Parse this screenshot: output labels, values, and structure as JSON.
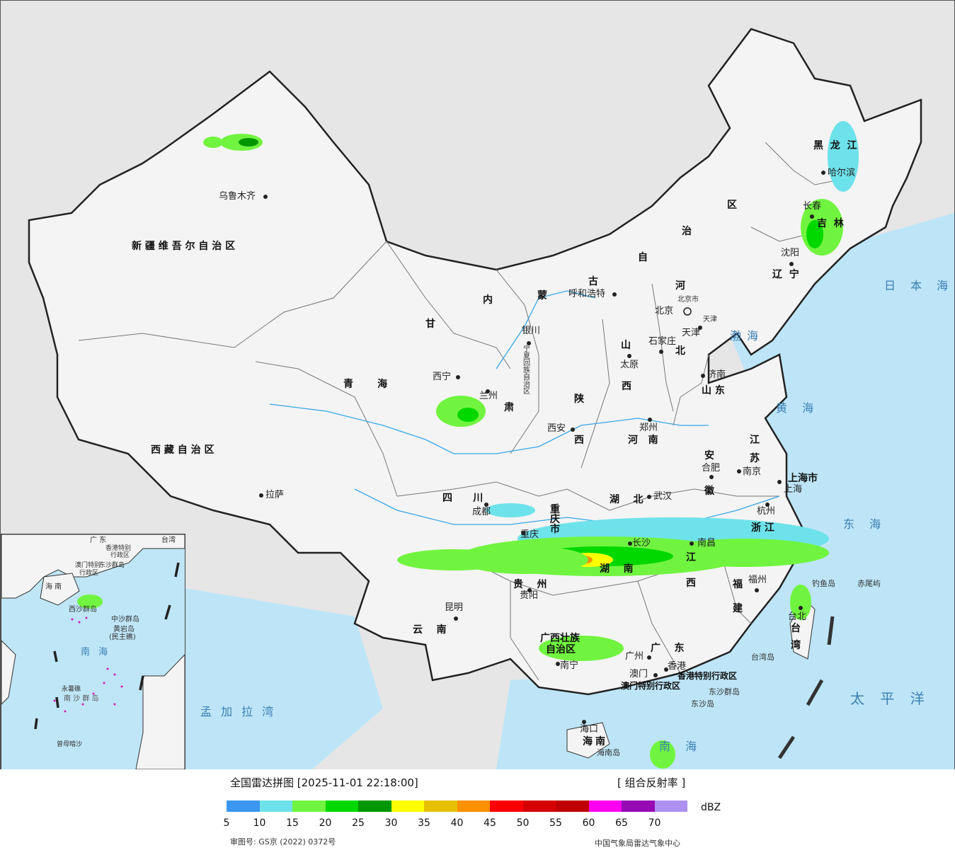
{
  "map": {
    "provinces": [
      {
        "id": "xinjiang",
        "text": "新 疆 维 吾 尔 自 治 区"
      },
      {
        "id": "xizang",
        "text": "西 藏 自 治 区"
      },
      {
        "id": "qinghai",
        "text": "青       海"
      },
      {
        "id": "gansu-1",
        "text": "甘"
      },
      {
        "id": "gansu-2",
        "text": "肃"
      },
      {
        "id": "neimenggu-1",
        "text": "内"
      },
      {
        "id": "neimenggu-2",
        "text": "蒙"
      },
      {
        "id": "neimenggu-3",
        "text": "古"
      },
      {
        "id": "neimenggu-4",
        "text": "自"
      },
      {
        "id": "neimenggu-5",
        "text": "治"
      },
      {
        "id": "neimenggu-6",
        "text": "区"
      },
      {
        "id": "heilongjiang",
        "text": "黑  龙  江"
      },
      {
        "id": "jilin",
        "text": "吉  林"
      },
      {
        "id": "liaoning",
        "text": "辽  宁"
      },
      {
        "id": "hebei-1",
        "text": "河"
      },
      {
        "id": "hebei-2",
        "text": "北"
      },
      {
        "id": "shanxi-1",
        "text": "山"
      },
      {
        "id": "shanxi-2",
        "text": "西"
      },
      {
        "id": "shaanxi-1",
        "text": "陕"
      },
      {
        "id": "shaanxi-2",
        "text": "西"
      },
      {
        "id": "shandong",
        "text": "山 东"
      },
      {
        "id": "henan",
        "text": "河   南"
      },
      {
        "id": "jiangsu-1",
        "text": "江"
      },
      {
        "id": "jiangsu-2",
        "text": "苏"
      },
      {
        "id": "anhui-1",
        "text": "安"
      },
      {
        "id": "anhui-2",
        "text": "徽"
      },
      {
        "id": "shanghai",
        "text": "上海市"
      },
      {
        "id": "sichuan",
        "text": "四      川"
      },
      {
        "id": "chongqing",
        "text": "重 庆 市"
      },
      {
        "id": "hubei",
        "text": "湖    北"
      },
      {
        "id": "zhejiang",
        "text": "浙 江"
      },
      {
        "id": "hunan",
        "text": "湖    南"
      },
      {
        "id": "jiangxi-1",
        "text": "江"
      },
      {
        "id": "jiangxi-2",
        "text": "西"
      },
      {
        "id": "fujian-1",
        "text": "福"
      },
      {
        "id": "fujian-2",
        "text": "建"
      },
      {
        "id": "guizhou",
        "text": "贵    州"
      },
      {
        "id": "yunnan",
        "text": "云    南"
      },
      {
        "id": "guangxi-1",
        "text": "广西壮族"
      },
      {
        "id": "guangxi-2",
        "text": "自治区"
      },
      {
        "id": "guangdong",
        "text": "广    东"
      },
      {
        "id": "taiwan-1",
        "text": "台"
      },
      {
        "id": "taiwan-2",
        "text": "湾"
      },
      {
        "id": "hainan-1",
        "text": "海"
      },
      {
        "id": "hainan-2",
        "text": "南"
      },
      {
        "id": "ningxia",
        "text": "宁夏回族自治区"
      },
      {
        "id": "beijing",
        "text": "北京市"
      },
      {
        "id": "tianjin",
        "text": "天津"
      },
      {
        "id": "hongkong",
        "text": "香港特别行政区"
      },
      {
        "id": "macau",
        "text": "澳门特别行政区"
      }
    ],
    "cities": [
      {
        "id": "urumqi",
        "text": "乌鲁木齐"
      },
      {
        "id": "lhasa",
        "text": "拉萨"
      },
      {
        "id": "xining",
        "text": "西宁"
      },
      {
        "id": "lanzhou",
        "text": "兰州"
      },
      {
        "id": "yinchuan",
        "text": "银川"
      },
      {
        "id": "hohhot",
        "text": "呼和浩特"
      },
      {
        "id": "harbin",
        "text": "哈尔滨"
      },
      {
        "id": "changchun",
        "text": "长春"
      },
      {
        "id": "shenyang",
        "text": "沈阳"
      },
      {
        "id": "beijing-city",
        "text": "北京"
      },
      {
        "id": "tianjin-city",
        "text": "天津"
      },
      {
        "id": "shijiazhuang",
        "text": "石家庄"
      },
      {
        "id": "taiyuan",
        "text": "太原"
      },
      {
        "id": "jinan",
        "text": "济南"
      },
      {
        "id": "zhengzhou",
        "text": "郑州"
      },
      {
        "id": "xian",
        "text": "西安"
      },
      {
        "id": "hefei",
        "text": "合肥"
      },
      {
        "id": "nanjing",
        "text": "南京"
      },
      {
        "id": "shanghai-city",
        "text": "上海"
      },
      {
        "id": "hangzhou",
        "text": "杭州"
      },
      {
        "id": "wuhan",
        "text": "武汉"
      },
      {
        "id": "chengdu",
        "text": "成都"
      },
      {
        "id": "chongqing-city",
        "text": "重庆"
      },
      {
        "id": "changsha",
        "text": "长沙"
      },
      {
        "id": "nanchang",
        "text": "南昌"
      },
      {
        "id": "fuzhou",
        "text": "福州"
      },
      {
        "id": "guiyang",
        "text": "贵阳"
      },
      {
        "id": "kunming",
        "text": "昆明"
      },
      {
        "id": "nanning",
        "text": "南宁"
      },
      {
        "id": "guangzhou",
        "text": "广州"
      },
      {
        "id": "hongkong-city",
        "text": "香港"
      },
      {
        "id": "macau-city",
        "text": "澳门"
      },
      {
        "id": "haikou",
        "text": "海口"
      },
      {
        "id": "taipei",
        "text": "台北"
      }
    ],
    "seas": [
      {
        "id": "bohai",
        "text": "渤海"
      },
      {
        "id": "huanghai",
        "text": "黄 海"
      },
      {
        "id": "donghai",
        "text": "东 海"
      },
      {
        "id": "nanhai",
        "text": "南 海"
      },
      {
        "id": "taipingyang",
        "text": "太 平 洋"
      },
      {
        "id": "ribenhai",
        "text": "日 本 海"
      },
      {
        "id": "mengjialawan",
        "text": "孟 加 拉 湾"
      }
    ],
    "islands": [
      {
        "id": "diaoyu",
        "text": "钓鱼岛"
      },
      {
        "id": "chiwei",
        "text": "赤尾屿"
      },
      {
        "id": "dongsha-qundao",
        "text": "东沙群岛"
      },
      {
        "id": "dongsha-dao",
        "text": "东沙岛"
      },
      {
        "id": "taiwan-dao",
        "text": "台湾岛"
      },
      {
        "id": "hainan-dao",
        "text": "海南岛"
      }
    ],
    "inset_labels": [
      {
        "id": "inset-nanhai",
        "text": "南 海"
      },
      {
        "id": "inset-zhongsha",
        "text": "中沙群岛"
      },
      {
        "id": "inset-huangyan",
        "text": "黄岩岛"
      },
      {
        "id": "inset-huangyan-2",
        "text": "(民主礁)"
      },
      {
        "id": "inset-nansha",
        "text": "南 沙 群 岛"
      },
      {
        "id": "inset-xisha",
        "text": "西沙群岛"
      },
      {
        "id": "inset-yongshu",
        "text": "永暑礁"
      },
      {
        "id": "inset-zengmu",
        "text": "曾母暗沙"
      },
      {
        "id": "inset-dongsha",
        "text": "东沙群岛"
      },
      {
        "id": "inset-taiwan",
        "text": "台湾"
      },
      {
        "id": "inset-guangdong",
        "text": "广 东"
      },
      {
        "id": "inset-hainan",
        "text": "海 南"
      },
      {
        "id": "inset-hk",
        "text": "香港特别"
      },
      {
        "id": "inset-hk-2",
        "text": "行政区"
      },
      {
        "id": "inset-macau",
        "text": "澳门特别"
      },
      {
        "id": "inset-macau-2",
        "text": "行政区"
      }
    ]
  },
  "legend": {
    "title": "全国雷达拼图 [2025-11-01 22:18:00]",
    "product": "[ 组合反射率 ]",
    "unit": "dBZ",
    "colors": [
      "#3a96f0",
      "#6ee2ea",
      "#71f43f",
      "#00d800",
      "#009600",
      "#ffff00",
      "#e7c100",
      "#ff9000",
      "#ff0000",
      "#d60000",
      "#c00000",
      "#ff00f0",
      "#960ab4",
      "#ad90f0"
    ],
    "ticks": [
      "5",
      "10",
      "15",
      "20",
      "25",
      "30",
      "35",
      "40",
      "45",
      "50",
      "55",
      "60",
      "65",
      "70"
    ],
    "approval": "审图号: GS京 (2022) 0372号",
    "credit": "中国气象局雷达气象中心"
  }
}
